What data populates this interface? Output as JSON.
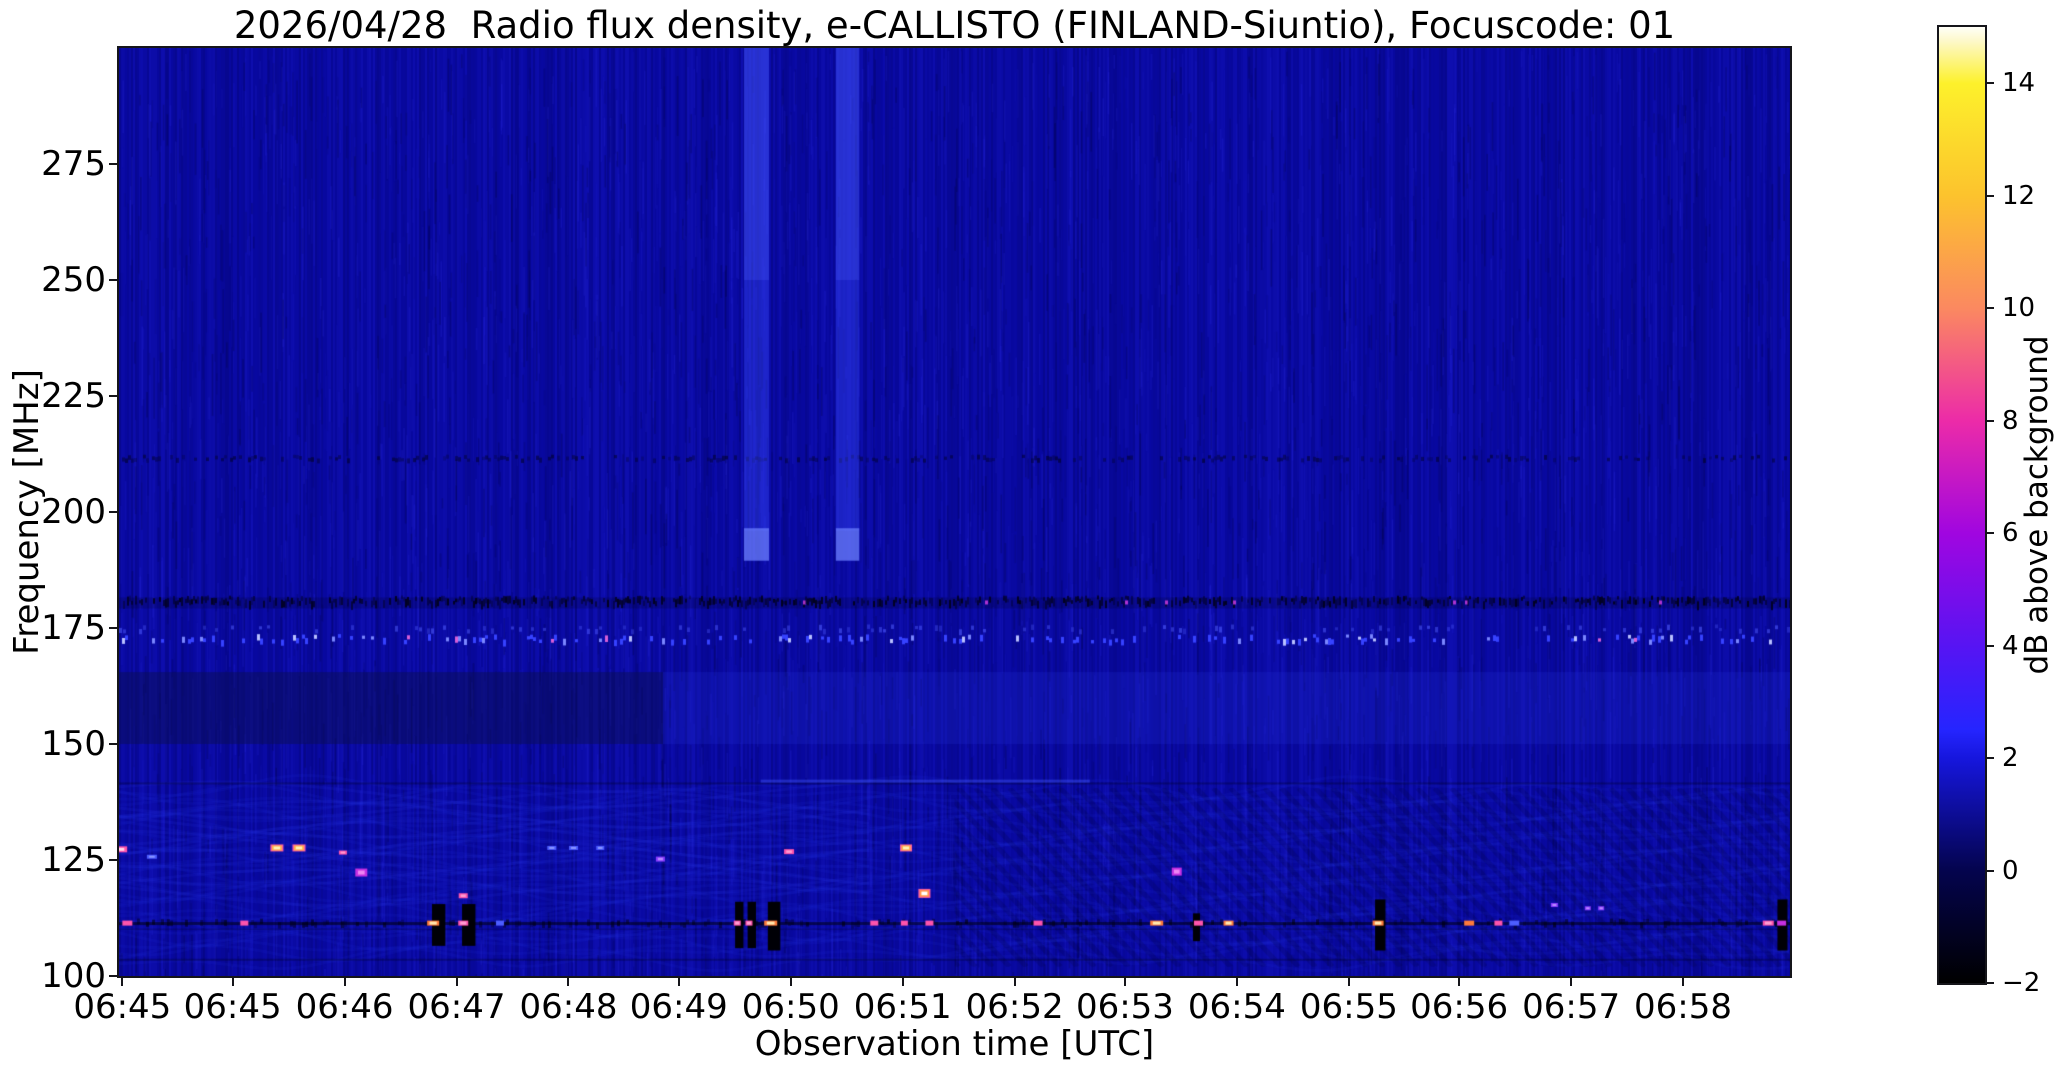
{
  "chart_data": {
    "type": "heatmap",
    "title": "2026/04/28  Radio flux density, e-CALLISTO (FINLAND-Siuntio), Focuscode: 01",
    "date": "2026/04/28",
    "instrument": "e-CALLISTO",
    "station": "FINLAND-Siuntio",
    "focuscode": "01",
    "xlabel": "Observation time [UTC]",
    "ylabel": "Frequency [MHz]",
    "colorbar_label": "dB above background",
    "ylim": [
      100,
      300
    ],
    "x_start": "06:45",
    "x_end": "06:59",
    "grid": false,
    "x_ticks": [
      {
        "fx": 0.002,
        "label": "06:45"
      },
      {
        "fx": 0.068,
        "label": "06:45"
      },
      {
        "fx": 0.135,
        "label": "06:46"
      },
      {
        "fx": 0.202,
        "label": "06:47"
      },
      {
        "fx": 0.269,
        "label": "06:48"
      },
      {
        "fx": 0.335,
        "label": "06:49"
      },
      {
        "fx": 0.402,
        "label": "06:50"
      },
      {
        "fx": 0.469,
        "label": "06:51"
      },
      {
        "fx": 0.536,
        "label": "06:52"
      },
      {
        "fx": 0.602,
        "label": "06:53"
      },
      {
        "fx": 0.669,
        "label": "06:54"
      },
      {
        "fx": 0.736,
        "label": "06:55"
      },
      {
        "fx": 0.802,
        "label": "06:56"
      },
      {
        "fx": 0.869,
        "label": "06:57"
      },
      {
        "fx": 0.936,
        "label": "06:58"
      }
    ],
    "y_ticks": [
      {
        "mhz": 275,
        "label": "275"
      },
      {
        "mhz": 250,
        "label": "250"
      },
      {
        "mhz": 225,
        "label": "225"
      },
      {
        "mhz": 200,
        "label": "200"
      },
      {
        "mhz": 175,
        "label": "175"
      },
      {
        "mhz": 150,
        "label": "150"
      },
      {
        "mhz": 125,
        "label": "125"
      },
      {
        "mhz": 100,
        "label": "100"
      }
    ],
    "colorbar": {
      "range": [
        -2,
        15
      ],
      "ticks": [
        {
          "v": 14,
          "label": "14"
        },
        {
          "v": 12,
          "label": "12"
        },
        {
          "v": 10,
          "label": "10"
        },
        {
          "v": 8,
          "label": "8"
        },
        {
          "v": 6,
          "label": "6"
        },
        {
          "v": 4,
          "label": "4"
        },
        {
          "v": 2,
          "label": "2"
        },
        {
          "v": 0,
          "label": "0"
        },
        {
          "v": -2,
          "label": "−2"
        }
      ],
      "stops": [
        {
          "p": 0.0,
          "c": "#000000"
        },
        {
          "p": 0.118,
          "c": "#04044e"
        },
        {
          "p": 0.235,
          "c": "#1616dd"
        },
        {
          "p": 0.265,
          "c": "#2525ff"
        },
        {
          "p": 0.353,
          "c": "#5714f3"
        },
        {
          "p": 0.47,
          "c": "#a006e0"
        },
        {
          "p": 0.588,
          "c": "#ec2ba8"
        },
        {
          "p": 0.706,
          "c": "#fb8960"
        },
        {
          "p": 0.824,
          "c": "#fcc32d"
        },
        {
          "p": 0.941,
          "c": "#fdf12b"
        },
        {
          "p": 0.985,
          "c": "#fdf8c8"
        },
        {
          "p": 1.0,
          "c": "#fffff8"
        }
      ]
    },
    "render": {
      "background_db": 1,
      "base_color": "#0909a0",
      "vertical_bands": [
        {
          "time": "06:49.7",
          "fx0": 0.374,
          "fx1": 0.389,
          "f_top": 300,
          "f_bot": 189.5
        },
        {
          "time": "06:50.5",
          "fx0": 0.429,
          "fx1": 0.443,
          "f_top": 300,
          "f_bot": 189.5
        }
      ],
      "band_150_165": {
        "f0": 150,
        "f1": 165.5,
        "dark_left_until_fx": 0.3255
      },
      "light_segment": {
        "f": 142,
        "fx0": 0.384,
        "fx1": 0.581
      },
      "rfi_lines": [
        {
          "f": 111.3,
          "kind": "dark-line"
        },
        {
          "f": 103.5,
          "kind": "dark-faint"
        },
        {
          "f": 141.5,
          "kind": "dark-faint"
        },
        {
          "f": 172.4,
          "kind": "bright-speckle"
        },
        {
          "f": 174.8,
          "kind": "speckle-faint"
        },
        {
          "f": 180.5,
          "kind": "dark-speckle"
        },
        {
          "f": 211.5,
          "kind": "dark-speckle-faint"
        }
      ],
      "wave_region": {
        "f0": 102,
        "f1": 140.5
      },
      "hatch_regions": [
        {
          "fx0": 0.5,
          "fx1": 0.88
        },
        {
          "fx0": 0.88,
          "fx1": 1.0
        }
      ],
      "dropouts": [
        {
          "fx": 0.1873,
          "w": 0.008,
          "f0": 106.5,
          "f1": 115.5
        },
        {
          "fx": 0.2053,
          "w": 0.008,
          "f0": 106.5,
          "f1": 115.5
        },
        {
          "fx": 0.3687,
          "w": 0.005,
          "f0": 106.0,
          "f1": 116.0
        },
        {
          "fx": 0.3762,
          "w": 0.005,
          "f0": 106.0,
          "f1": 116.0
        },
        {
          "fx": 0.3883,
          "w": 0.0075,
          "f0": 105.5,
          "f1": 116.0
        },
        {
          "fx": 0.6427,
          "w": 0.0042,
          "f0": 107.5,
          "f1": 113.5
        },
        {
          "fx": 0.7517,
          "w": 0.0062,
          "f0": 105.5,
          "f1": 116.5
        },
        {
          "fx": 0.9925,
          "w": 0.006,
          "f0": 105.5,
          "f1": 116.5
        }
      ],
      "bursts_111": [
        {
          "fx": 0.005,
          "w": 10,
          "c": "pink"
        },
        {
          "fx": 0.075,
          "w": 8,
          "c": "pink"
        },
        {
          "fx": 0.188,
          "w": 12,
          "c": "hot",
          "strong": true
        },
        {
          "fx": 0.206,
          "w": 10,
          "c": "pink",
          "strong": true
        },
        {
          "fx": 0.228,
          "w": 8,
          "c": "blue"
        },
        {
          "fx": 0.37,
          "w": 7,
          "c": "pink",
          "strong": true
        },
        {
          "fx": 0.377,
          "w": 7,
          "c": "pink",
          "strong": true
        },
        {
          "fx": 0.39,
          "w": 13,
          "c": "hot",
          "strong": true
        },
        {
          "fx": 0.452,
          "w": 8,
          "c": "pink"
        },
        {
          "fx": 0.47,
          "w": 7,
          "c": "pink"
        },
        {
          "fx": 0.485,
          "w": 8,
          "c": "pink"
        },
        {
          "fx": 0.55,
          "w": 9,
          "c": "pink"
        },
        {
          "fx": 0.621,
          "w": 13,
          "c": "hot",
          "strong": true
        },
        {
          "fx": 0.646,
          "w": 9,
          "c": "pink"
        },
        {
          "fx": 0.664,
          "w": 10,
          "c": "hot",
          "strong": true
        },
        {
          "fx": 0.7535,
          "w": 11,
          "c": "hot",
          "strong": true
        },
        {
          "fx": 0.808,
          "w": 10,
          "c": "hot"
        },
        {
          "fx": 0.8255,
          "w": 8,
          "c": "pink"
        },
        {
          "fx": 0.835,
          "w": 10,
          "c": "blue"
        },
        {
          "fx": 0.987,
          "w": 11,
          "c": "pink",
          "strong": true
        },
        {
          "fx": 0.995,
          "w": 9,
          "c": "magenta"
        }
      ],
      "spots": [
        {
          "fx": 0.001,
          "f": 127.3,
          "w": 13,
          "h": 6,
          "c": "pinkcore"
        },
        {
          "fx": 0.0945,
          "f": 127.6,
          "w": 13,
          "h": 7,
          "c": "yellow"
        },
        {
          "fx": 0.1077,
          "f": 127.6,
          "w": 13,
          "h": 7,
          "c": "yellow"
        },
        {
          "fx": 0.0197,
          "f": 125.7,
          "w": 10,
          "h": 4,
          "c": "blue"
        },
        {
          "fx": 0.134,
          "f": 126.6,
          "w": 8,
          "h": 4,
          "c": "pink"
        },
        {
          "fx": 0.145,
          "f": 122.3,
          "w": 12,
          "h": 8,
          "c": "magenta"
        },
        {
          "fx": 0.206,
          "f": 117.3,
          "w": 9,
          "h": 5,
          "c": "pink"
        },
        {
          "fx": 0.259,
          "f": 127.6,
          "w": 9,
          "h": 4,
          "c": "blue"
        },
        {
          "fx": 0.272,
          "f": 127.6,
          "w": 9,
          "h": 4,
          "c": "blue"
        },
        {
          "fx": 0.288,
          "f": 127.6,
          "w": 8,
          "h": 4,
          "c": "blue"
        },
        {
          "fx": 0.324,
          "f": 125.2,
          "w": 9,
          "h": 5,
          "c": "purple"
        },
        {
          "fx": 0.401,
          "f": 126.8,
          "w": 10,
          "h": 5,
          "c": "pink"
        },
        {
          "fx": 0.471,
          "f": 127.6,
          "w": 12,
          "h": 7,
          "c": "yellow"
        },
        {
          "fx": 0.482,
          "f": 117.8,
          "w": 12,
          "h": 9,
          "c": "orange"
        },
        {
          "fx": 0.633,
          "f": 122.5,
          "w": 10,
          "h": 8,
          "c": "magenta"
        },
        {
          "fx": 0.859,
          "f": 115.3,
          "w": 7,
          "h": 4,
          "c": "purple"
        },
        {
          "fx": 0.879,
          "f": 114.6,
          "w": 6,
          "h": 4,
          "c": "purple"
        },
        {
          "fx": 0.887,
          "f": 114.6,
          "w": 6,
          "h": 4,
          "c": "purple"
        }
      ]
    }
  }
}
